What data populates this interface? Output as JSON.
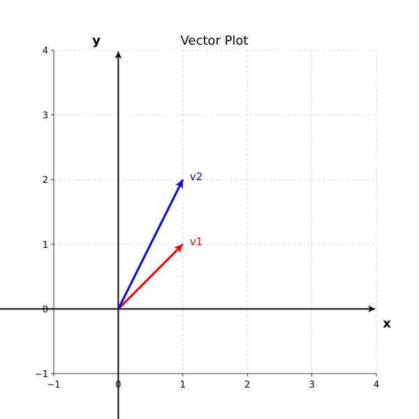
{
  "chart_data": {
    "type": "vector",
    "title": "Vector Plot",
    "xlabel": "x",
    "ylabel": "y",
    "xlim": [
      -1,
      4
    ],
    "ylim": [
      -1,
      4
    ],
    "x_ticks": [
      -1,
      0,
      1,
      2,
      3,
      4
    ],
    "y_ticks": [
      -1,
      0,
      1,
      2,
      3,
      4
    ],
    "x_tick_labels": [
      "−1",
      "0",
      "1",
      "2",
      "3",
      "4"
    ],
    "y_tick_labels": [
      "−1",
      "0",
      "1",
      "2",
      "3",
      "4"
    ],
    "grid": true,
    "vectors": [
      {
        "name": "v1",
        "origin": [
          0,
          0
        ],
        "components": [
          1,
          1
        ],
        "color": "#ff0000"
      },
      {
        "name": "v2",
        "origin": [
          0,
          0
        ],
        "components": [
          1,
          2
        ],
        "color": "#0000ff"
      }
    ]
  }
}
